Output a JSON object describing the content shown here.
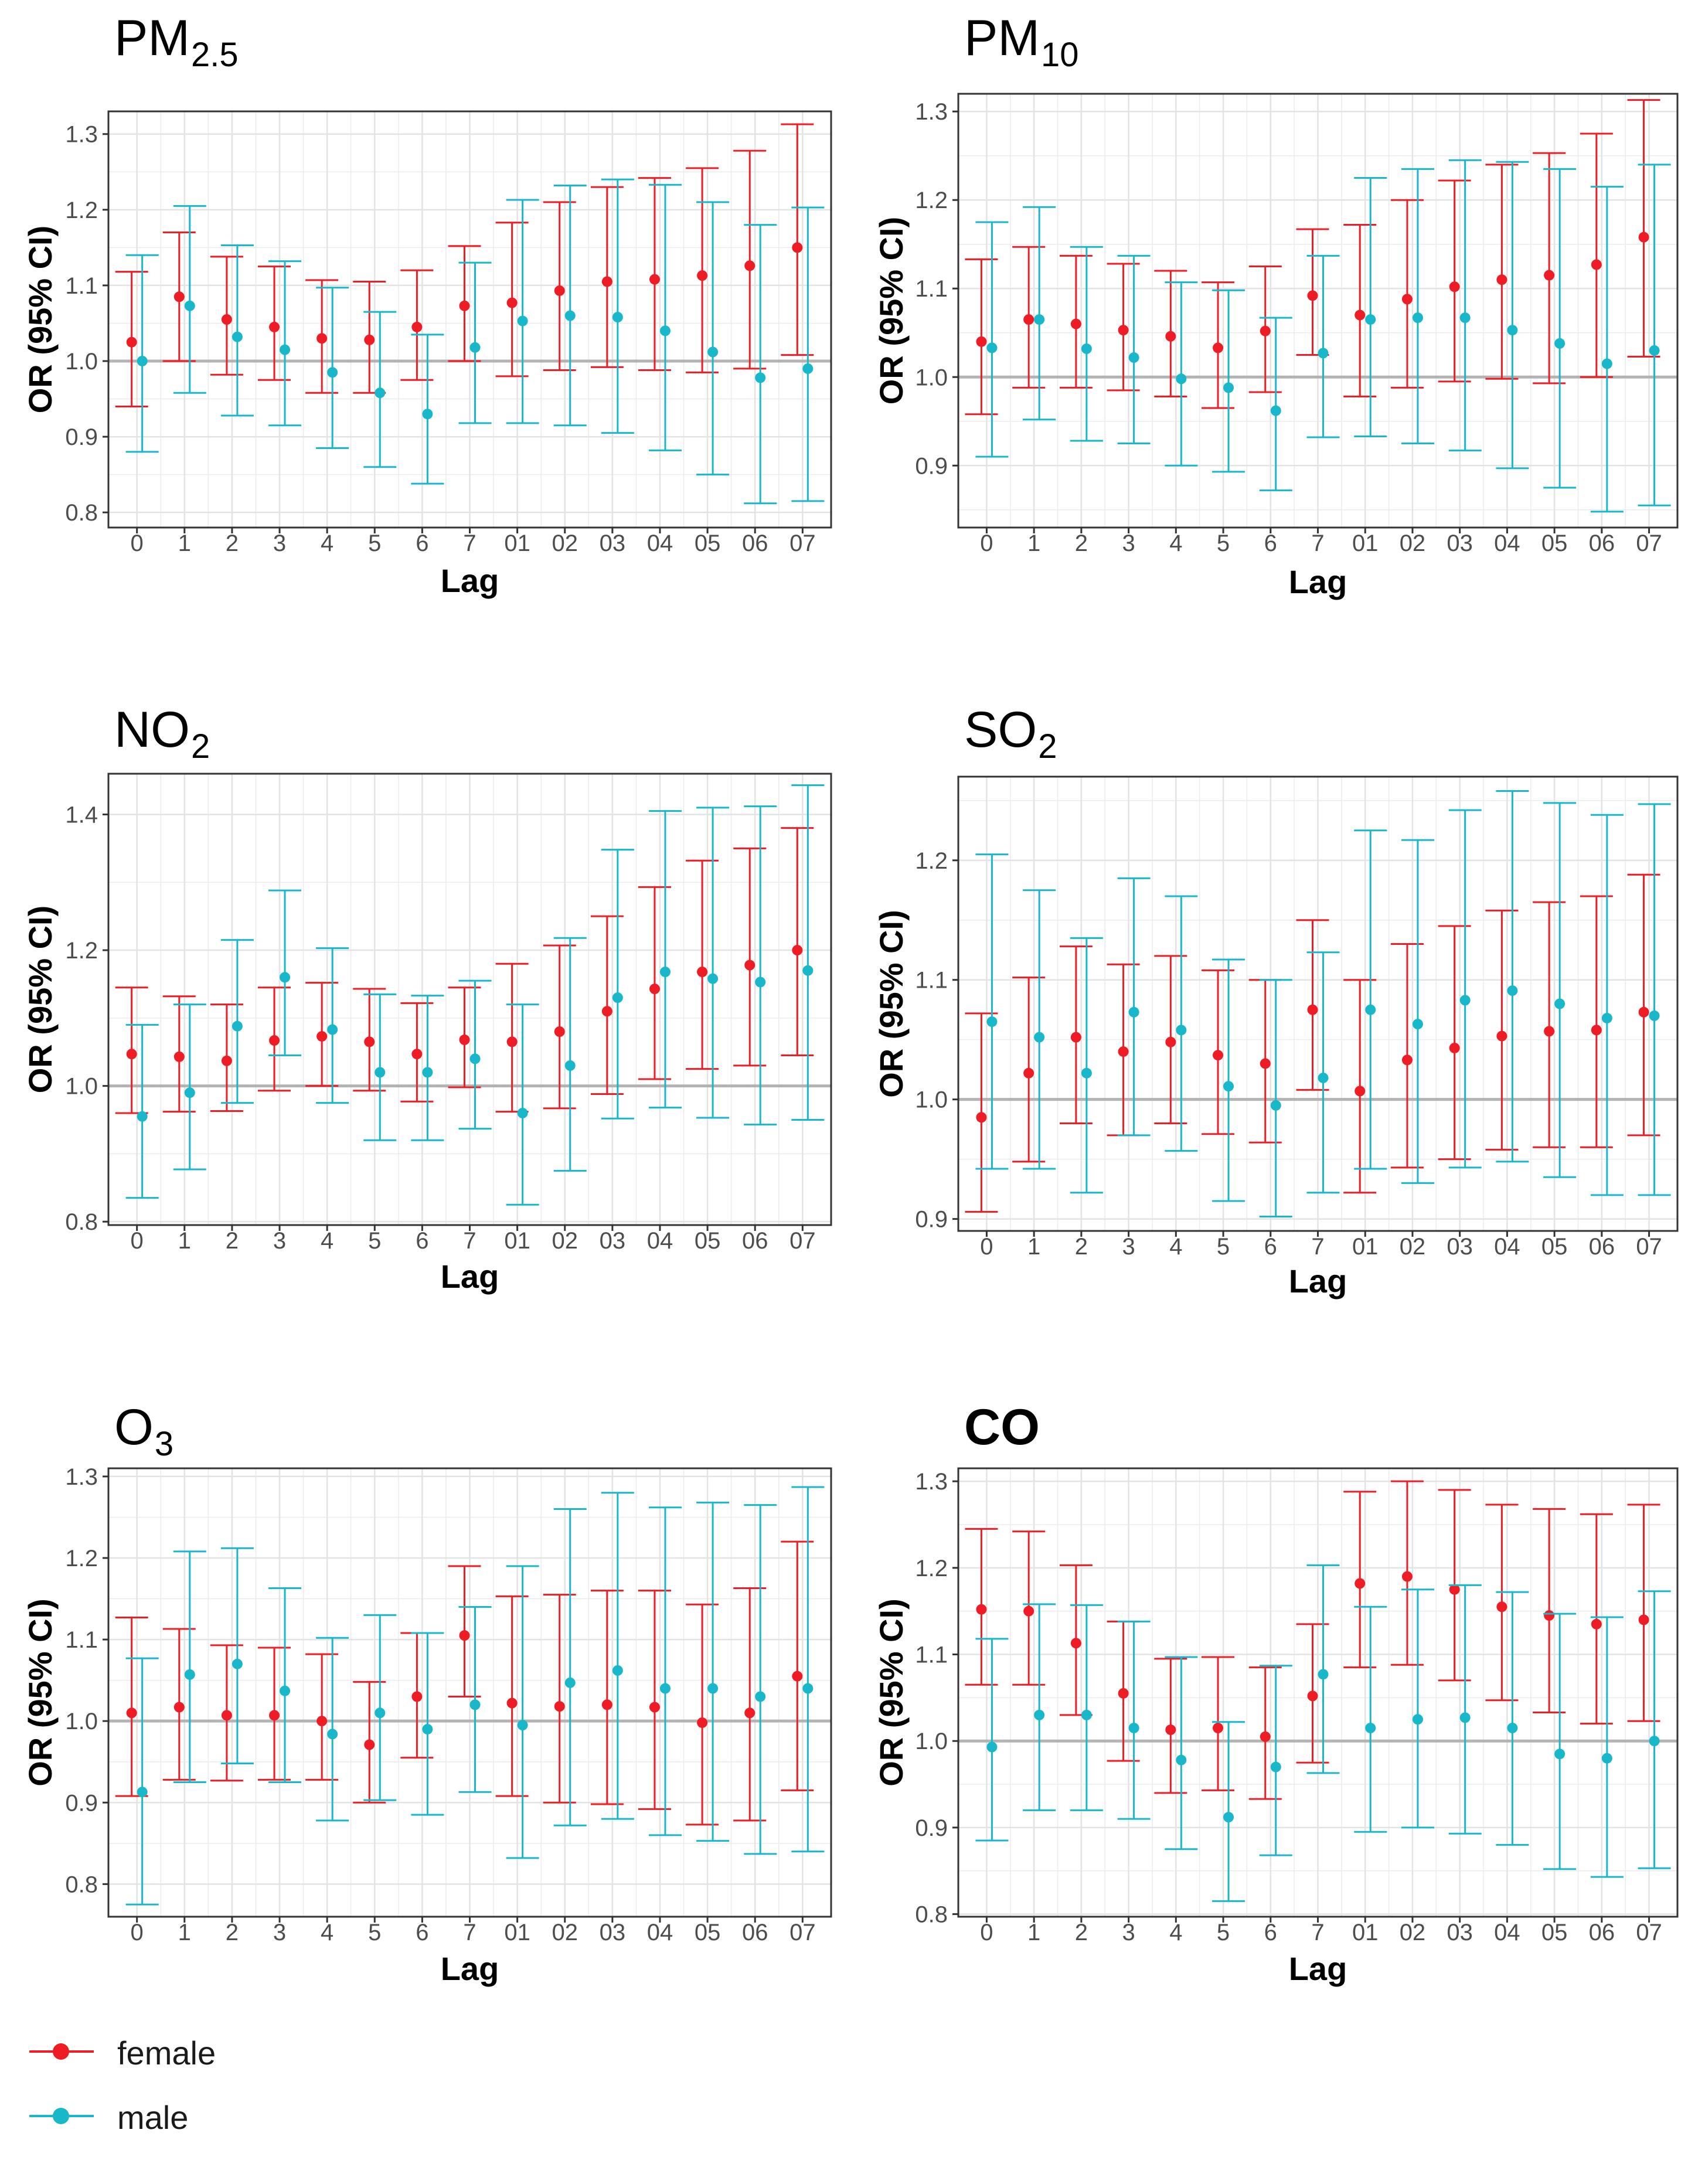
{
  "figure": {
    "legend": [
      {
        "label": "female",
        "color": "#ee1c25"
      },
      {
        "label": "male",
        "color": "#18b7c9"
      }
    ],
    "reference_line_color": "#b3b3b3",
    "grid_color": "#ebebeb",
    "axis_color": "#333333"
  },
  "chart_data": [
    {
      "type": "scatter",
      "subtype": "errorbar",
      "title": "PM",
      "title_sub": "2.5",
      "xlabel": "Lag",
      "ylabel": "OR (95% CI)",
      "categories": [
        "0",
        "1",
        "2",
        "3",
        "4",
        "5",
        "6",
        "7",
        "01",
        "02",
        "03",
        "04",
        "05",
        "06",
        "07"
      ],
      "ylim": [
        0.78,
        1.33
      ],
      "yticks": [
        0.8,
        0.9,
        1.0,
        1.1,
        1.2,
        1.3
      ],
      "ytick_labels": [
        "0.8",
        "0.9",
        "1.0",
        "1.1",
        "1.2",
        "1.3"
      ],
      "reference": 1.0,
      "series": [
        {
          "name": "female",
          "or": [
            1.025,
            1.085,
            1.055,
            1.045,
            1.03,
            1.028,
            1.045,
            1.073,
            1.077,
            1.093,
            1.105,
            1.108,
            1.113,
            1.126,
            1.15
          ],
          "lower": [
            0.94,
            1.0,
            0.982,
            0.975,
            0.958,
            0.958,
            0.975,
            1.0,
            0.98,
            0.988,
            0.992,
            0.988,
            0.985,
            0.99,
            1.008
          ],
          "upper": [
            1.118,
            1.17,
            1.138,
            1.125,
            1.107,
            1.105,
            1.12,
            1.152,
            1.183,
            1.21,
            1.23,
            1.242,
            1.255,
            1.278,
            1.313
          ]
        },
        {
          "name": "male",
          "or": [
            1.0,
            1.073,
            1.032,
            1.015,
            0.985,
            0.958,
            0.93,
            1.018,
            1.053,
            1.06,
            1.058,
            1.04,
            1.012,
            0.978,
            0.99
          ],
          "lower": [
            0.88,
            0.958,
            0.928,
            0.915,
            0.885,
            0.86,
            0.838,
            0.918,
            0.918,
            0.915,
            0.905,
            0.882,
            0.85,
            0.812,
            0.815
          ],
          "upper": [
            1.14,
            1.205,
            1.153,
            1.132,
            1.097,
            1.065,
            1.035,
            1.13,
            1.213,
            1.232,
            1.24,
            1.233,
            1.21,
            1.18,
            1.203
          ]
        }
      ]
    },
    {
      "type": "scatter",
      "subtype": "errorbar",
      "title": "PM",
      "title_sub": "10",
      "xlabel": "Lag",
      "ylabel": "OR (95% CI)",
      "categories": [
        "0",
        "1",
        "2",
        "3",
        "4",
        "5",
        "6",
        "7",
        "01",
        "02",
        "03",
        "04",
        "05",
        "06",
        "07"
      ],
      "ylim": [
        0.83,
        1.32
      ],
      "yticks": [
        0.9,
        1.0,
        1.1,
        1.2,
        1.3
      ],
      "ytick_labels": [
        "0.9",
        "1.0",
        "1.1",
        "1.2",
        "1.3"
      ],
      "reference": 1.0,
      "series": [
        {
          "name": "female",
          "or": [
            1.04,
            1.065,
            1.06,
            1.053,
            1.046,
            1.033,
            1.052,
            1.092,
            1.07,
            1.088,
            1.102,
            1.11,
            1.115,
            1.127,
            1.158
          ],
          "lower": [
            0.958,
            0.988,
            0.988,
            0.985,
            0.978,
            0.965,
            0.983,
            1.025,
            0.978,
            0.988,
            0.995,
            0.998,
            0.993,
            1.0,
            1.023
          ],
          "upper": [
            1.133,
            1.147,
            1.137,
            1.128,
            1.12,
            1.107,
            1.125,
            1.167,
            1.172,
            1.2,
            1.222,
            1.24,
            1.253,
            1.275,
            1.313
          ]
        },
        {
          "name": "male",
          "or": [
            1.033,
            1.065,
            1.032,
            1.022,
            0.998,
            0.988,
            0.962,
            1.027,
            1.065,
            1.067,
            1.067,
            1.053,
            1.038,
            1.015,
            1.03
          ],
          "lower": [
            0.91,
            0.952,
            0.928,
            0.925,
            0.9,
            0.893,
            0.872,
            0.932,
            0.933,
            0.925,
            0.917,
            0.897,
            0.875,
            0.848,
            0.855
          ],
          "upper": [
            1.175,
            1.192,
            1.147,
            1.137,
            1.107,
            1.098,
            1.067,
            1.137,
            1.225,
            1.235,
            1.245,
            1.243,
            1.235,
            1.215,
            1.24
          ]
        }
      ]
    },
    {
      "type": "scatter",
      "subtype": "errorbar",
      "title": "NO",
      "title_sub": "2",
      "xlabel": "Lag",
      "ylabel": "OR (95% CI)",
      "categories": [
        "0",
        "1",
        "2",
        "3",
        "4",
        "5",
        "6",
        "7",
        "01",
        "02",
        "03",
        "04",
        "05",
        "06",
        "07"
      ],
      "ylim": [
        0.795,
        1.46
      ],
      "yticks": [
        0.8,
        1.0,
        1.2,
        1.4
      ],
      "ytick_labels": [
        "0.8",
        "1.0",
        "1.2",
        "1.4"
      ],
      "reference": 1.0,
      "series": [
        {
          "name": "female",
          "or": [
            1.047,
            1.043,
            1.037,
            1.067,
            1.073,
            1.065,
            1.047,
            1.068,
            1.065,
            1.08,
            1.11,
            1.143,
            1.168,
            1.178,
            1.2
          ],
          "lower": [
            0.96,
            0.962,
            0.963,
            0.993,
            1.0,
            0.993,
            0.977,
            0.998,
            0.962,
            0.967,
            0.988,
            1.01,
            1.025,
            1.03,
            1.045
          ],
          "upper": [
            1.145,
            1.132,
            1.12,
            1.145,
            1.152,
            1.143,
            1.122,
            1.145,
            1.18,
            1.207,
            1.25,
            1.293,
            1.332,
            1.35,
            1.38
          ]
        },
        {
          "name": "male",
          "or": [
            0.955,
            0.99,
            1.088,
            1.16,
            1.083,
            1.02,
            1.02,
            1.04,
            0.96,
            1.03,
            1.13,
            1.168,
            1.158,
            1.153,
            1.17
          ],
          "lower": [
            0.835,
            0.877,
            0.975,
            1.045,
            0.975,
            0.92,
            0.92,
            0.937,
            0.825,
            0.875,
            0.952,
            0.968,
            0.953,
            0.943,
            0.95
          ],
          "upper": [
            1.09,
            1.12,
            1.215,
            1.288,
            1.203,
            1.135,
            1.133,
            1.155,
            1.12,
            1.218,
            1.348,
            1.405,
            1.41,
            1.412,
            1.443
          ]
        }
      ]
    },
    {
      "type": "scatter",
      "subtype": "errorbar",
      "title": "SO",
      "title_sub": "2",
      "xlabel": "Lag",
      "ylabel": "OR (95% CI)",
      "categories": [
        "0",
        "1",
        "2",
        "3",
        "4",
        "5",
        "6",
        "7",
        "01",
        "02",
        "03",
        "04",
        "05",
        "06",
        "07"
      ],
      "ylim": [
        0.89,
        1.27
      ],
      "yticks": [
        0.9,
        1.0,
        1.1,
        1.2
      ],
      "ytick_labels": [
        "0.9",
        "1.0",
        "1.1",
        "1.2"
      ],
      "reference": 1.0,
      "series": [
        {
          "name": "female",
          "or": [
            0.985,
            1.022,
            1.052,
            1.04,
            1.048,
            1.037,
            1.03,
            1.075,
            1.007,
            1.033,
            1.043,
            1.053,
            1.057,
            1.058,
            1.073
          ],
          "lower": [
            0.906,
            0.948,
            0.98,
            0.97,
            0.98,
            0.971,
            0.964,
            1.008,
            0.922,
            0.943,
            0.95,
            0.958,
            0.96,
            0.96,
            0.97
          ],
          "upper": [
            1.072,
            1.102,
            1.128,
            1.113,
            1.12,
            1.108,
            1.1,
            1.15,
            1.1,
            1.13,
            1.145,
            1.158,
            1.165,
            1.17,
            1.188
          ]
        },
        {
          "name": "male",
          "or": [
            1.065,
            1.052,
            1.022,
            1.073,
            1.058,
            1.011,
            0.995,
            1.018,
            1.075,
            1.063,
            1.083,
            1.091,
            1.08,
            1.068,
            1.07
          ],
          "lower": [
            0.942,
            0.942,
            0.922,
            0.97,
            0.957,
            0.915,
            0.902,
            0.922,
            0.942,
            0.93,
            0.943,
            0.948,
            0.935,
            0.92,
            0.92
          ],
          "upper": [
            1.205,
            1.175,
            1.135,
            1.185,
            1.17,
            1.117,
            1.1,
            1.123,
            1.225,
            1.217,
            1.242,
            1.258,
            1.248,
            1.238,
            1.247
          ]
        }
      ]
    },
    {
      "type": "scatter",
      "subtype": "errorbar",
      "title": "O",
      "title_sub": "3",
      "xlabel": "Lag",
      "ylabel": "OR (95% CI)",
      "categories": [
        "0",
        "1",
        "2",
        "3",
        "4",
        "5",
        "6",
        "7",
        "01",
        "02",
        "03",
        "04",
        "05",
        "06",
        "07"
      ],
      "ylim": [
        0.76,
        1.31
      ],
      "yticks": [
        0.8,
        0.9,
        1.0,
        1.1,
        1.2,
        1.3
      ],
      "ytick_labels": [
        "0.8",
        "0.9",
        "1.0",
        "1.1",
        "1.2",
        "1.3"
      ],
      "reference": 1.0,
      "series": [
        {
          "name": "female",
          "or": [
            1.01,
            1.017,
            1.007,
            1.007,
            1.0,
            0.971,
            1.03,
            1.105,
            1.022,
            1.018,
            1.02,
            1.017,
            0.998,
            1.01,
            1.055
          ],
          "lower": [
            0.908,
            0.928,
            0.927,
            0.928,
            0.928,
            0.9,
            0.955,
            1.03,
            0.908,
            0.9,
            0.898,
            0.892,
            0.873,
            0.878,
            0.915
          ],
          "upper": [
            1.127,
            1.113,
            1.093,
            1.09,
            1.082,
            1.048,
            1.108,
            1.19,
            1.153,
            1.155,
            1.16,
            1.16,
            1.143,
            1.163,
            1.22
          ]
        },
        {
          "name": "male",
          "or": [
            0.913,
            1.057,
            1.07,
            1.037,
            0.984,
            1.01,
            0.99,
            1.02,
            0.995,
            1.047,
            1.062,
            1.04,
            1.04,
            1.03,
            1.04
          ],
          "lower": [
            0.775,
            0.925,
            0.948,
            0.925,
            0.878,
            0.903,
            0.885,
            0.913,
            0.832,
            0.872,
            0.88,
            0.86,
            0.853,
            0.837,
            0.84
          ],
          "upper": [
            1.077,
            1.208,
            1.212,
            1.163,
            1.102,
            1.13,
            1.108,
            1.14,
            1.19,
            1.26,
            1.28,
            1.262,
            1.268,
            1.265,
            1.287
          ]
        }
      ]
    },
    {
      "type": "scatter",
      "subtype": "errorbar",
      "title": "CO",
      "title_sub": "",
      "xlabel": "Lag",
      "ylabel": "OR (95% CI)",
      "categories": [
        "0",
        "1",
        "2",
        "3",
        "4",
        "5",
        "6",
        "7",
        "01",
        "02",
        "03",
        "04",
        "05",
        "06",
        "07"
      ],
      "ylim": [
        0.797,
        1.315
      ],
      "yticks": [
        0.8,
        0.9,
        1.0,
        1.1,
        1.2,
        1.3
      ],
      "ytick_labels": [
        "0.8",
        "0.9",
        "1.0",
        "1.1",
        "1.2",
        "1.3"
      ],
      "reference": 1.0,
      "series": [
        {
          "name": "female",
          "or": [
            1.152,
            1.15,
            1.113,
            1.055,
            1.013,
            1.015,
            1.005,
            1.052,
            1.182,
            1.19,
            1.175,
            1.155,
            1.145,
            1.135,
            1.14
          ],
          "lower": [
            1.065,
            1.065,
            1.03,
            0.977,
            0.94,
            0.943,
            0.933,
            0.975,
            1.085,
            1.088,
            1.07,
            1.047,
            1.033,
            1.02,
            1.023
          ],
          "upper": [
            1.245,
            1.242,
            1.203,
            1.138,
            1.095,
            1.097,
            1.085,
            1.135,
            1.288,
            1.3,
            1.29,
            1.273,
            1.268,
            1.262,
            1.273
          ]
        },
        {
          "name": "male",
          "or": [
            0.993,
            1.03,
            1.03,
            1.015,
            0.978,
            0.912,
            0.97,
            1.077,
            1.015,
            1.025,
            1.027,
            1.015,
            0.985,
            0.98,
            1.0
          ],
          "lower": [
            0.885,
            0.92,
            0.92,
            0.91,
            0.875,
            0.815,
            0.868,
            0.963,
            0.895,
            0.9,
            0.893,
            0.88,
            0.852,
            0.843,
            0.853
          ],
          "upper": [
            1.118,
            1.158,
            1.157,
            1.138,
            1.097,
            1.022,
            1.087,
            1.203,
            1.155,
            1.175,
            1.18,
            1.172,
            1.147,
            1.143,
            1.173
          ]
        }
      ]
    }
  ]
}
